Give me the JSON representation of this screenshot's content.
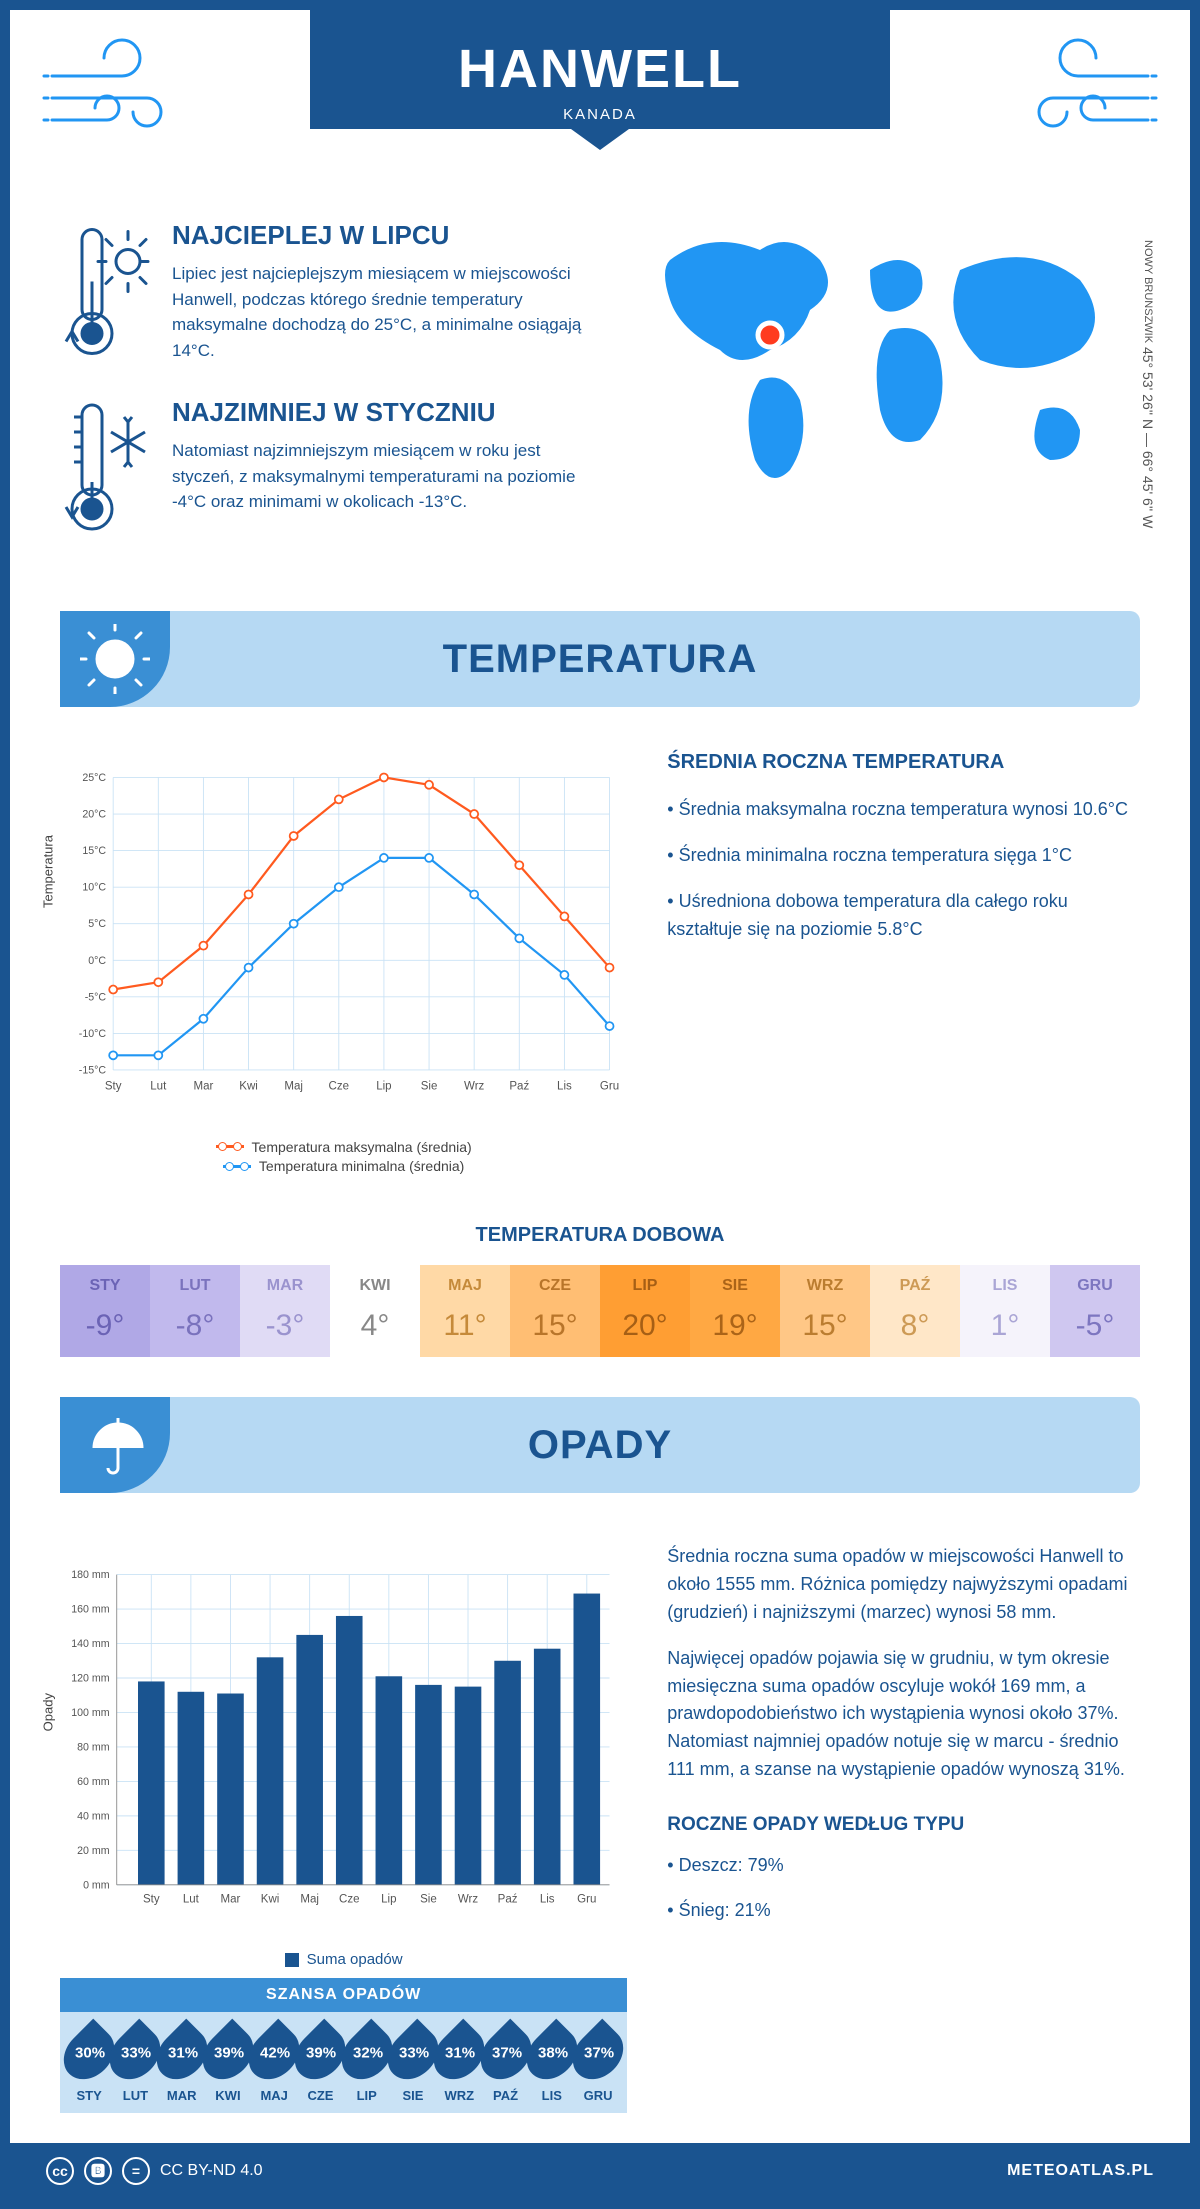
{
  "header": {
    "title": "HANWELL",
    "subtitle": "KANADA"
  },
  "intro": {
    "warm": {
      "heading": "NAJCIEPLEJ W LIPCU",
      "text": "Lipiec jest najcieplejszym miesiącem w miejscowości Hanwell, podczas którego średnie temperatury maksymalne dochodzą do 25°C, a minimalne osiągają 14°C."
    },
    "cold": {
      "heading": "NAJZIMNIEJ W STYCZNIU",
      "text": "Natomiast najzimniejszym miesiącem w roku jest styczeń, z maksymalnymi temperaturami na poziomie -4°C oraz minimami w okolicach -13°C."
    },
    "coords": "45° 53' 26'' N — 66° 45' 6'' W",
    "region": "NOWY BRUNSZWIK"
  },
  "sections": {
    "temperature": "TEMPERATURA",
    "precip": "OPADY"
  },
  "months": [
    "Sty",
    "Lut",
    "Mar",
    "Kwi",
    "Maj",
    "Cze",
    "Lip",
    "Sie",
    "Wrz",
    "Paź",
    "Lis",
    "Gru"
  ],
  "months_upper": [
    "STY",
    "LUT",
    "MAR",
    "KWI",
    "MAJ",
    "CZE",
    "LIP",
    "SIE",
    "WRZ",
    "PAŹ",
    "LIS",
    "GRU"
  ],
  "temp_chart": {
    "y_label": "Temperatura",
    "y_ticks": [
      "25°C",
      "20°C",
      "15°C",
      "10°C",
      "5°C",
      "0°C",
      "-5°C",
      "-10°C",
      "-15°C"
    ],
    "ylim": [
      -15,
      25
    ],
    "max_series": [
      -4,
      -3,
      2,
      9,
      17,
      22,
      25,
      24,
      20,
      13,
      6,
      -1
    ],
    "min_series": [
      -13,
      -13,
      -8,
      -1,
      5,
      10,
      14,
      14,
      9,
      3,
      -2,
      -9
    ],
    "max_color": "#ff5a1f",
    "min_color": "#2196f3",
    "grid_color": "#c9e2f5",
    "legend_max": "Temperatura maksymalna (średnia)",
    "legend_min": "Temperatura minimalna (średnia)"
  },
  "temp_side": {
    "heading": "ŚREDNIA ROCZNA TEMPERATURA",
    "b1": "• Średnia maksymalna roczna temperatura wynosi 10.6°C",
    "b2": "• Średnia minimalna roczna temperatura sięga 1°C",
    "b3": "• Uśredniona dobowa temperatura dla całego roku kształtuje się na poziomie 5.8°C"
  },
  "daily": {
    "heading": "TEMPERATURA DOBOWA",
    "values": [
      "-9°",
      "-8°",
      "-3°",
      "4°",
      "11°",
      "15°",
      "20°",
      "19°",
      "15°",
      "8°",
      "1°",
      "-5°"
    ],
    "bg": [
      "#b0a8e6",
      "#c1b9ed",
      "#e0dbf5",
      "#ffffff",
      "#ffd9a6",
      "#ffbe73",
      "#ff9e33",
      "#ffa843",
      "#ffc786",
      "#ffe7c8",
      "#f5f3fb",
      "#cfc7f0"
    ],
    "fg": [
      "#6b63b5",
      "#7a72bd",
      "#9a93ce",
      "#888888",
      "#c58a3a",
      "#b8752a",
      "#a65f15",
      "#ab6418",
      "#bb7d30",
      "#cd9a55",
      "#aaa5d5",
      "#7d76c0"
    ]
  },
  "precip_chart": {
    "y_label": "Opady",
    "y_ticks": [
      "180 mm",
      "160 mm",
      "140 mm",
      "120 mm",
      "100 mm",
      "80 mm",
      "60 mm",
      "40 mm",
      "20 mm",
      "0 mm"
    ],
    "ylim": [
      0,
      180
    ],
    "values": [
      118,
      112,
      111,
      132,
      145,
      156,
      121,
      116,
      115,
      130,
      137,
      169
    ],
    "bar_color": "#1a5490",
    "grid_color": "#c9e2f5",
    "legend": "Suma opadów"
  },
  "precip_side": {
    "p1": "Średnia roczna suma opadów w miejscowości Hanwell to około 1555 mm. Różnica pomiędzy najwyższymi opadami (grudzień) i najniższymi (marzec) wynosi 58 mm.",
    "p2": "Najwięcej opadów pojawia się w grudniu, w tym okresie miesięczna suma opadów oscyluje wokół 169 mm, a prawdopodobieństwo ich wystąpienia wynosi około 37%. Natomiast najmniej opadów notuje się w marcu - średnio 111 mm, a szanse na wystąpienie opadów wynoszą 31%.",
    "type_heading": "ROCZNE OPADY WEDŁUG TYPU",
    "rain": "• Deszcz: 79%",
    "snow": "• Śnieg: 21%"
  },
  "chance": {
    "heading": "SZANSA OPADÓW",
    "values": [
      "30%",
      "33%",
      "31%",
      "39%",
      "42%",
      "39%",
      "32%",
      "33%",
      "31%",
      "37%",
      "38%",
      "37%"
    ]
  },
  "footer": {
    "license": "CC BY-ND 4.0",
    "site": "METEOATLAS.PL"
  }
}
